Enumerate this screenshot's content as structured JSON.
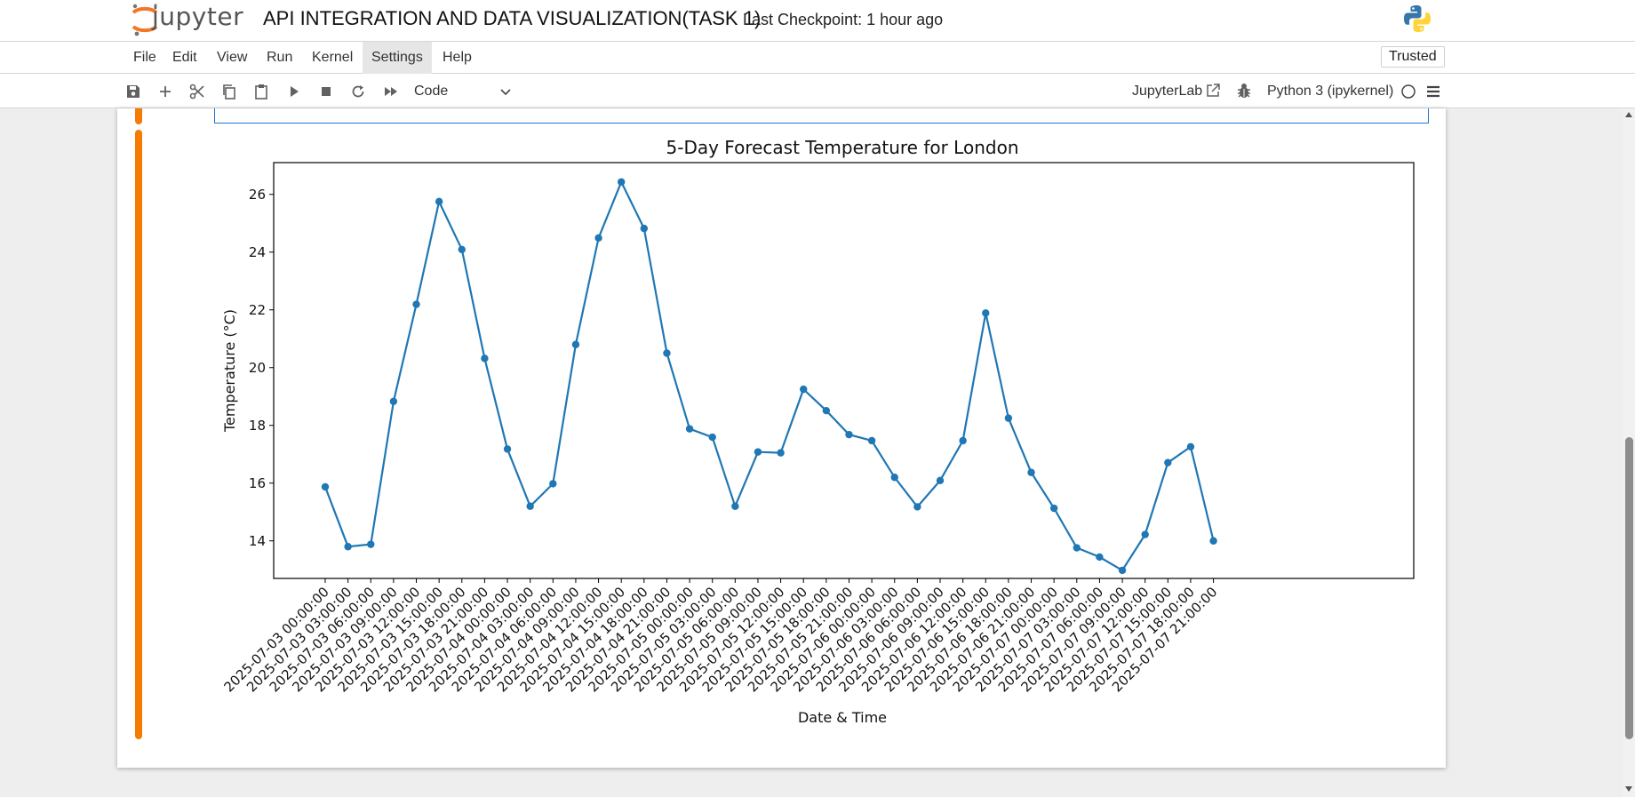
{
  "header": {
    "logo_text": "jupyter",
    "notebook_title": "API INTEGRATION AND DATA VISUALIZATION(TASK 1)",
    "checkpoint": "Last Checkpoint: 1 hour ago"
  },
  "menubar": {
    "items": [
      "File",
      "Edit",
      "View",
      "Run",
      "Kernel",
      "Settings",
      "Help"
    ],
    "trusted": "Trusted"
  },
  "toolbar": {
    "cell_type": "Code",
    "jupyterlab_label": "JupyterLab",
    "kernel_name": "Python 3 (ipykernel)",
    "icons": [
      "save-icon",
      "add-icon",
      "cut-icon",
      "copy-icon",
      "paste-icon",
      "run-icon",
      "stop-icon",
      "restart-icon",
      "fast-forward-icon"
    ]
  },
  "colors": {
    "accent": "#f57c00",
    "line": "#1f77b4",
    "selected_border": "#1976d2"
  },
  "chart_data": {
    "type": "line",
    "title": "5-Day Forecast Temperature for London",
    "xlabel": "Date & Time",
    "ylabel": "Temperature (°C)",
    "ylim": [
      12.7,
      27.1
    ],
    "yticks": [
      14,
      16,
      18,
      20,
      22,
      24,
      26
    ],
    "grid": false,
    "x": [
      "2025-07-03 00:00:00",
      "2025-07-03 03:00:00",
      "2025-07-03 06:00:00",
      "2025-07-03 09:00:00",
      "2025-07-03 12:00:00",
      "2025-07-03 15:00:00",
      "2025-07-03 18:00:00",
      "2025-07-03 21:00:00",
      "2025-07-04 00:00:00",
      "2025-07-04 03:00:00",
      "2025-07-04 06:00:00",
      "2025-07-04 09:00:00",
      "2025-07-04 12:00:00",
      "2025-07-04 15:00:00",
      "2025-07-04 18:00:00",
      "2025-07-04 21:00:00",
      "2025-07-05 00:00:00",
      "2025-07-05 03:00:00",
      "2025-07-05 06:00:00",
      "2025-07-05 09:00:00",
      "2025-07-05 12:00:00",
      "2025-07-05 15:00:00",
      "2025-07-05 18:00:00",
      "2025-07-05 21:00:00",
      "2025-07-06 00:00:00",
      "2025-07-06 03:00:00",
      "2025-07-06 06:00:00",
      "2025-07-06 09:00:00",
      "2025-07-06 12:00:00",
      "2025-07-06 15:00:00",
      "2025-07-06 18:00:00",
      "2025-07-06 21:00:00",
      "2025-07-07 00:00:00",
      "2025-07-07 03:00:00",
      "2025-07-07 06:00:00",
      "2025-07-07 09:00:00",
      "2025-07-07 12:00:00",
      "2025-07-07 15:00:00",
      "2025-07-07 18:00:00",
      "2025-07-07 21:00:00"
    ],
    "y": [
      15.87,
      13.8,
      13.88,
      18.83,
      22.19,
      25.75,
      24.09,
      20.32,
      17.18,
      15.2,
      15.98,
      20.8,
      24.49,
      26.43,
      24.82,
      20.5,
      17.88,
      17.59,
      15.2,
      17.08,
      17.05,
      19.25,
      18.51,
      17.68,
      17.47,
      16.2,
      15.18,
      16.09,
      17.47,
      21.89,
      18.25,
      16.37,
      15.13,
      13.76,
      13.44,
      12.98,
      14.22,
      16.71,
      17.26,
      14.0
    ]
  }
}
